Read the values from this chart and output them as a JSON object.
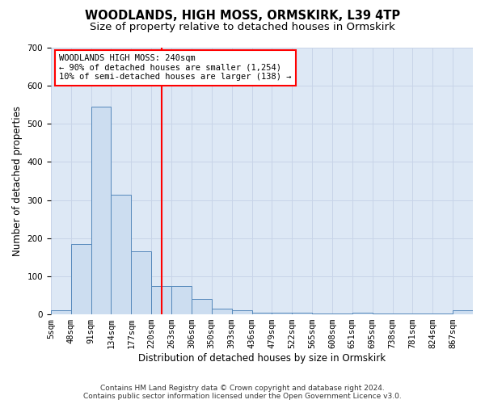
{
  "title": "WOODLANDS, HIGH MOSS, ORMSKIRK, L39 4TP",
  "subtitle": "Size of property relative to detached houses in Ormskirk",
  "xlabel": "Distribution of detached houses by size in Ormskirk",
  "ylabel": "Number of detached properties",
  "footer1": "Contains HM Land Registry data © Crown copyright and database right 2024.",
  "footer2": "Contains public sector information licensed under the Open Government Licence v3.0.",
  "bin_labels": [
    "5sqm",
    "48sqm",
    "91sqm",
    "134sqm",
    "177sqm",
    "220sqm",
    "263sqm",
    "306sqm",
    "350sqm",
    "393sqm",
    "436sqm",
    "479sqm",
    "522sqm",
    "565sqm",
    "608sqm",
    "651sqm",
    "695sqm",
    "738sqm",
    "781sqm",
    "824sqm",
    "867sqm"
  ],
  "bar_heights": [
    10,
    185,
    545,
    315,
    165,
    75,
    75,
    40,
    15,
    10,
    5,
    5,
    5,
    3,
    3,
    5,
    2,
    2,
    2,
    2,
    10
  ],
  "bar_color": "#ccddf0",
  "bar_edge_color": "#5588bb",
  "red_line_bin": 5.5,
  "annotation_text1": "WOODLANDS HIGH MOSS: 240sqm",
  "annotation_text2": "← 90% of detached houses are smaller (1,254)",
  "annotation_text3": "10% of semi-detached houses are larger (138) →",
  "ylim": [
    0,
    700
  ],
  "yticks": [
    0,
    100,
    200,
    300,
    400,
    500,
    600,
    700
  ],
  "grid_color": "#c8d4e8",
  "background_color": "#dde8f5",
  "title_fontsize": 10.5,
  "subtitle_fontsize": 9.5,
  "axis_label_fontsize": 8.5,
  "tick_fontsize": 7.5,
  "footer_fontsize": 6.5
}
